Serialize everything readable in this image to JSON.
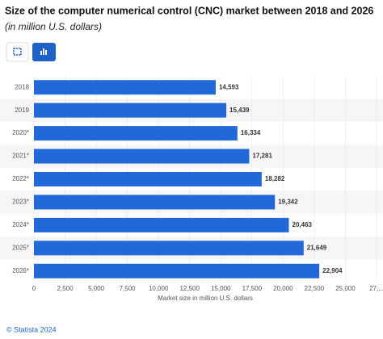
{
  "chart_data": {
    "type": "bar",
    "orientation": "horizontal",
    "title": "Size of the computer numerical control (CNC) market between 2018 and 2026",
    "subtitle": "(in million U.S. dollars)",
    "categories": [
      "2018",
      "2019",
      "2020*",
      "2021*",
      "2022*",
      "2023*",
      "2024*",
      "2025*",
      "2026*"
    ],
    "values": [
      14593,
      15439,
      16334,
      17281,
      18282,
      19342,
      20463,
      21649,
      22904
    ],
    "value_labels": [
      "14,593",
      "15,439",
      "16,334",
      "17,281",
      "18,282",
      "19,342",
      "20,463",
      "21,649",
      "22,904"
    ],
    "color": "#2268d8",
    "xlim": [
      0,
      27500
    ],
    "xticks": [
      0,
      {
        "value": 2500,
        "label": "2,500"
      },
      {
        "value": 5000,
        "label": "5,000"
      },
      {
        "value": 7500,
        "label": "7,500"
      },
      {
        "value": 10000,
        "label": "10,000"
      },
      {
        "value": 12500,
        "label": "12,500"
      },
      {
        "value": 15000,
        "label": "15,000"
      },
      {
        "value": 17500,
        "label": "17,500"
      },
      {
        "value": 20000,
        "label": "20,000"
      },
      {
        "value": 22500,
        "label": "22,500"
      },
      {
        "value": 25000,
        "label": "25,000"
      },
      {
        "value": 27500,
        "label": "27,..."
      }
    ],
    "xlabel": "Market size in million U.S. dollars",
    "source": "© Statista 2024"
  }
}
